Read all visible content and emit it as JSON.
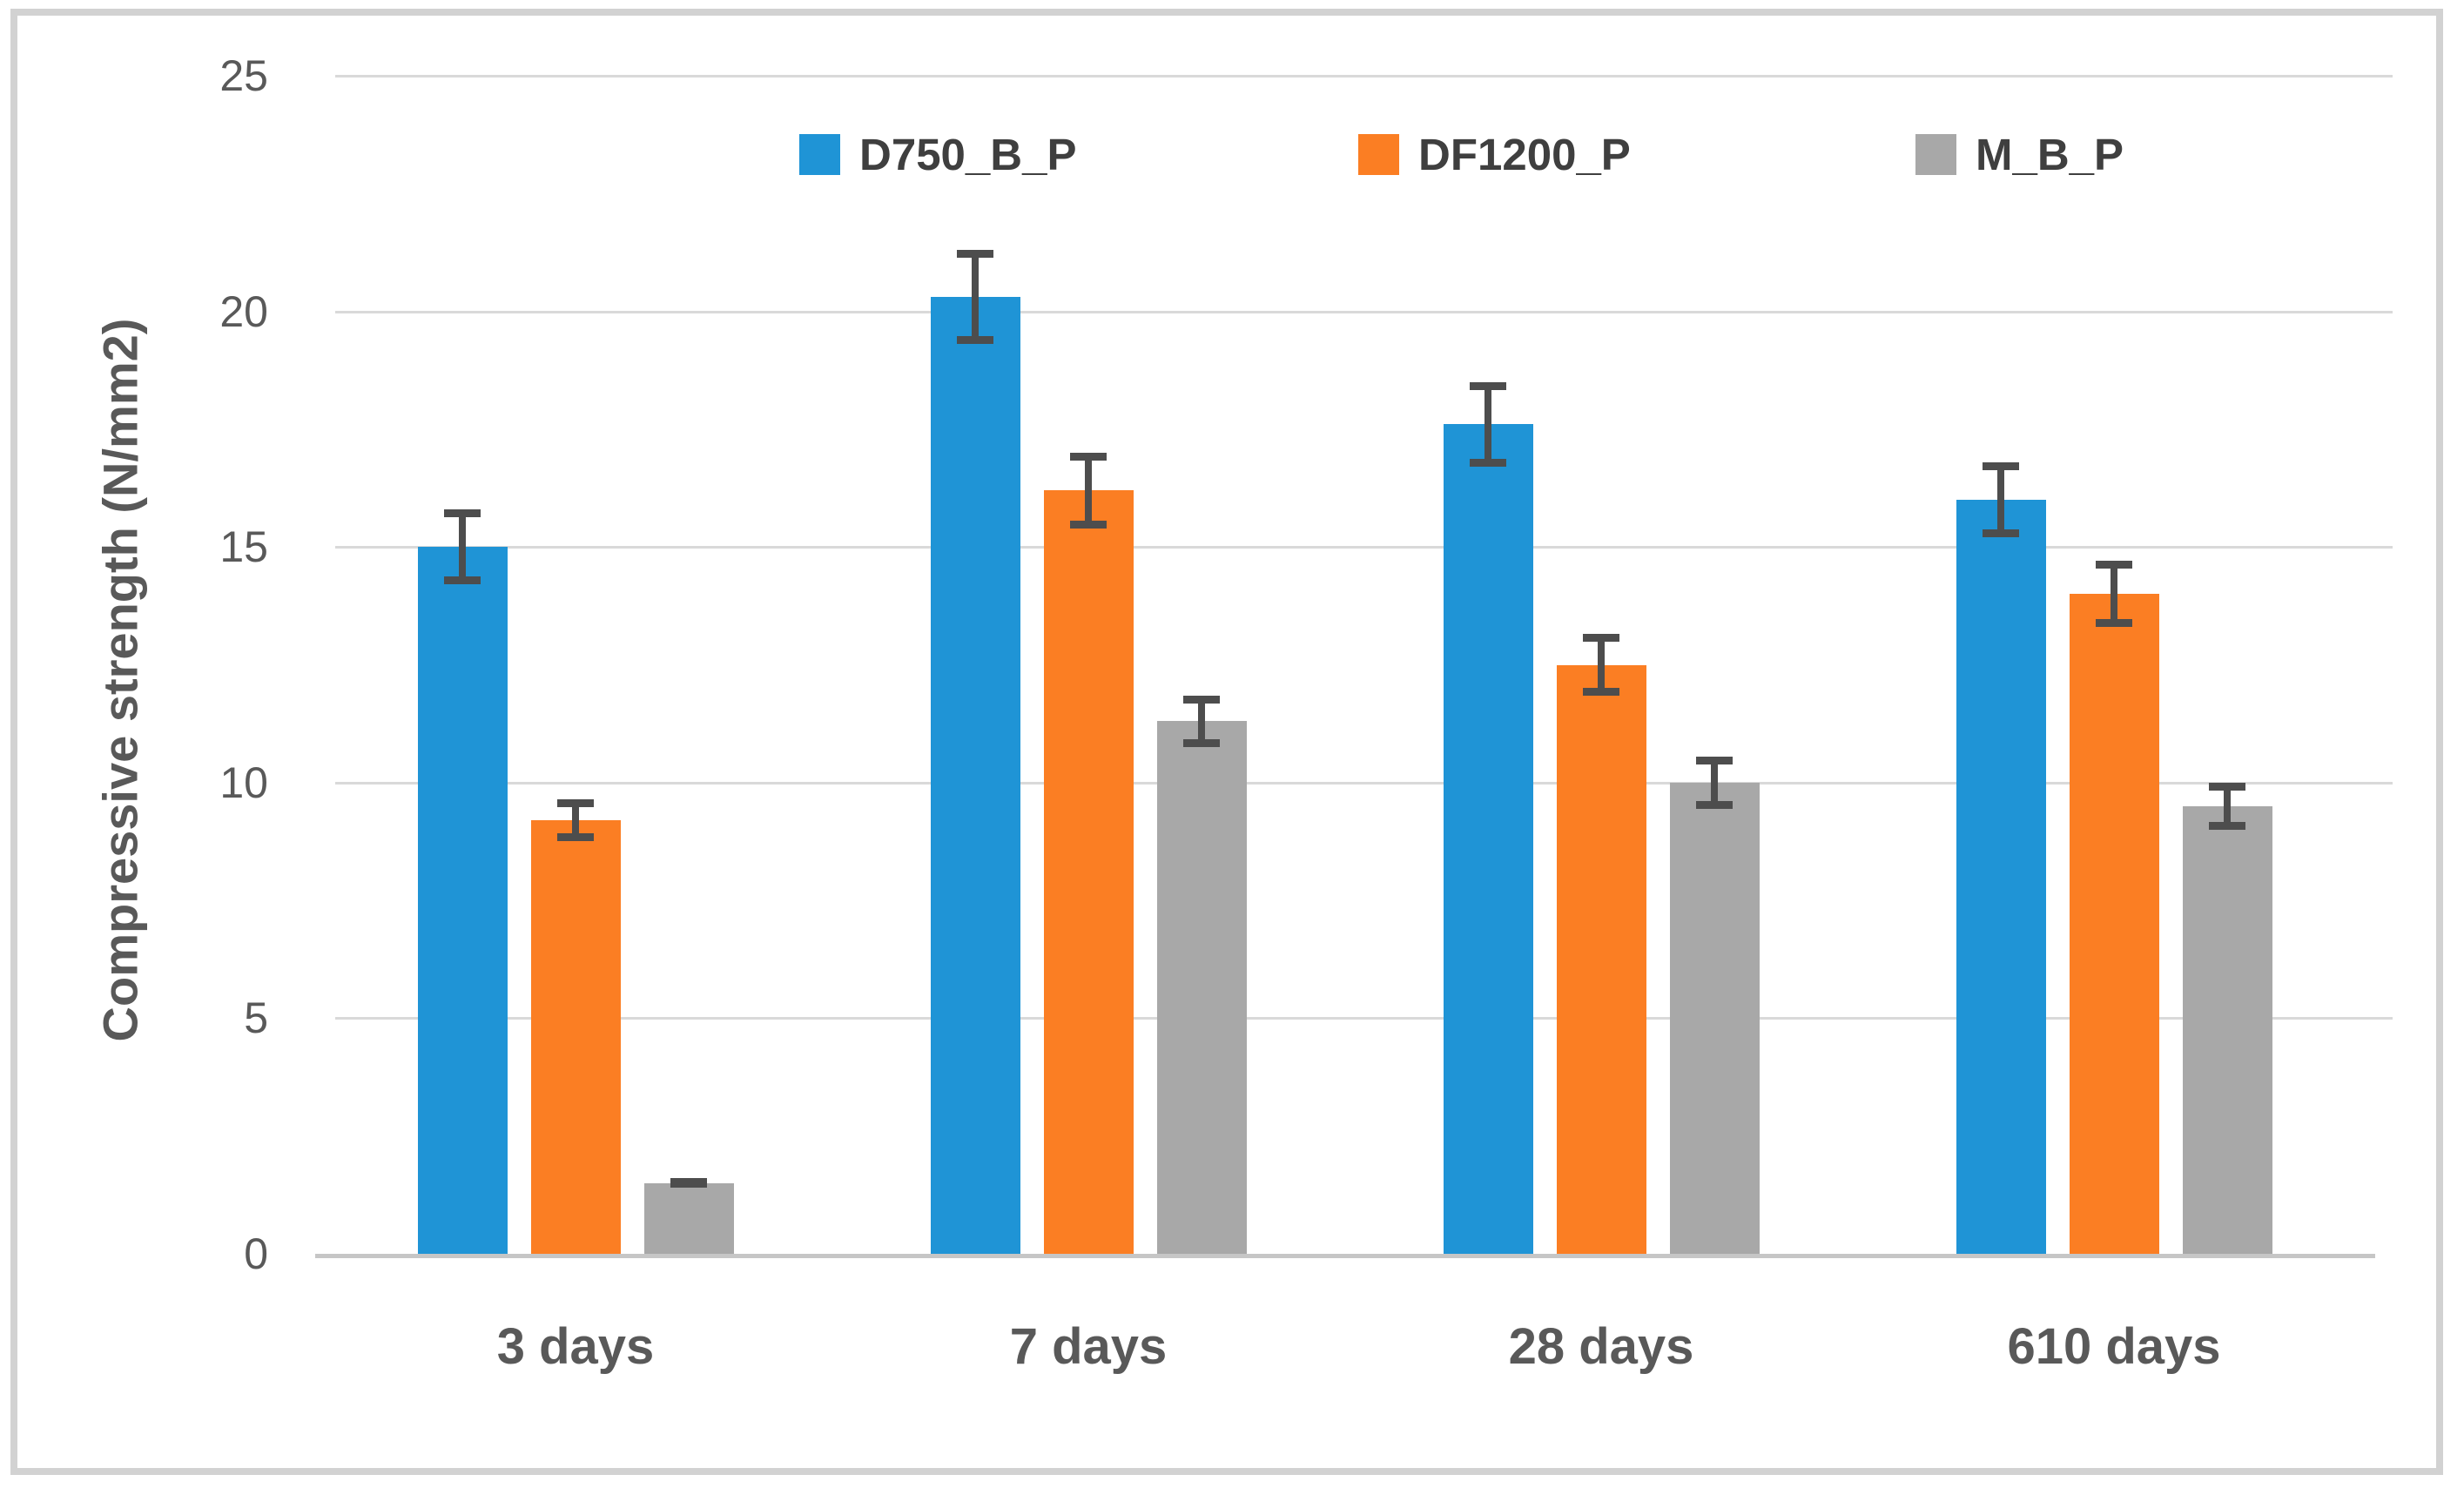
{
  "colors": {
    "series_blue": "#1f94d6",
    "series_orange": "#fb7e23",
    "series_gray": "#a8a8a8",
    "gridline": "#d9d9d9",
    "axis_line": "#c6c6c6",
    "error_bar": "#4d4d4d",
    "tick_text": "#595959",
    "legend_text": "#3f3f3f",
    "frame_border": "#d2d2d2"
  },
  "chart_data": {
    "type": "bar",
    "title": "",
    "xlabel": "",
    "ylabel": "Compressive strength (N/mm2)",
    "categories": [
      "3 days",
      "7 days",
      "28 days",
      "610 days"
    ],
    "series": [
      {
        "name": "D750_B_P",
        "color": "#1f94d6",
        "values": [
          15.0,
          20.3,
          17.6,
          16.0
        ],
        "errors": [
          0.8,
          1.0,
          0.9,
          0.8
        ]
      },
      {
        "name": "DF1200_P",
        "color": "#fb7e23",
        "values": [
          9.2,
          16.2,
          12.5,
          14.0
        ],
        "errors": [
          0.45,
          0.8,
          0.65,
          0.7
        ]
      },
      {
        "name": "M_B_P",
        "color": "#a8a8a8",
        "values": [
          1.5,
          11.3,
          10.0,
          9.5
        ],
        "errors": [
          0.1,
          0.55,
          0.55,
          0.5
        ]
      }
    ],
    "yticks": [
      0,
      5,
      10,
      15,
      20,
      25
    ],
    "ylim": [
      0,
      25
    ],
    "grid": true,
    "error_bars": true,
    "legend_position": "top"
  }
}
